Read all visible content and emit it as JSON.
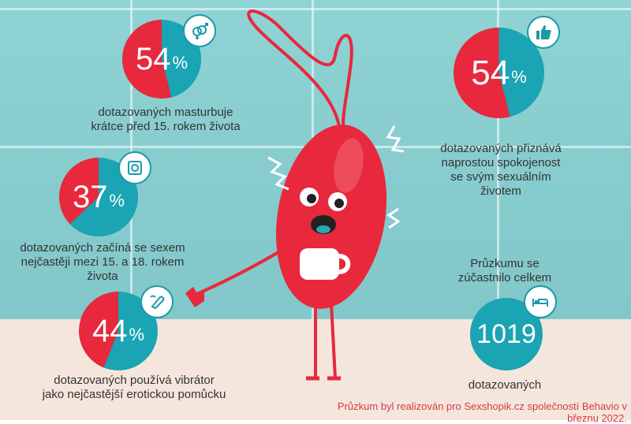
{
  "stats": [
    {
      "value": "54",
      "unit": "%",
      "fraction": 0.54,
      "icon": "gender-symbols-icon",
      "caption_line1": "dotazovaných masturbuje",
      "caption_line2": "krátce před 15. rokem života"
    },
    {
      "value": "37",
      "unit": "%",
      "fraction": 0.37,
      "icon": "condom-icon",
      "caption_line1": "dotazovaných začíná se sexem",
      "caption_line2": "nejčastěji mezi 15. a 18. rokem života"
    },
    {
      "value": "44",
      "unit": "%",
      "fraction": 0.44,
      "icon": "vibrator-icon",
      "caption_line1": "dotazovaných používá vibrátor",
      "caption_line2": "jako nejčastější erotickou pomůcku"
    },
    {
      "value": "54",
      "unit": "%",
      "fraction": 0.54,
      "icon": "thumbs-up-icon",
      "caption_line1": "dotazovaných přiznává",
      "caption_line2": "naprostou spokojenost",
      "caption_line3": "se svým sexuálním",
      "caption_line4": "životem"
    }
  ],
  "total": {
    "intro_line1": "Průzkumu se",
    "intro_line2": "zúčastnilo celkem",
    "value": "1019",
    "icon": "bed-icon",
    "caption": "dotazovaných"
  },
  "footer": "Průzkum byl realizován pro Sexshopik.cz společností Behavio v březnu 2022.",
  "colors": {
    "red": "#e8283c",
    "teal": "#1aa4b4"
  }
}
